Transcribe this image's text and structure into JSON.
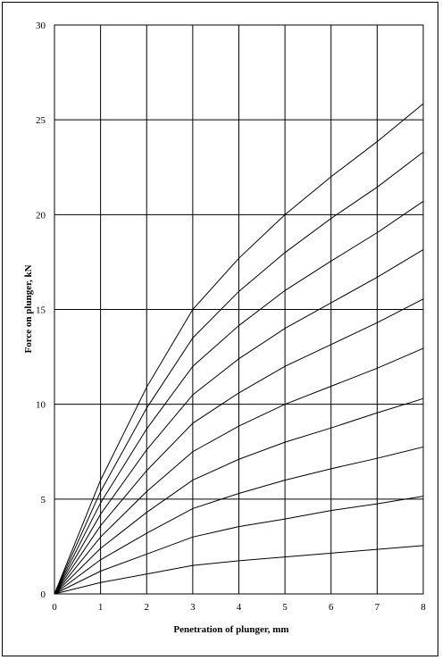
{
  "chart_data": {
    "type": "line",
    "xlabel": "Penetration of plunger, mm",
    "ylabel": "Force on plunger, kN",
    "xlim": [
      0,
      8
    ],
    "ylim": [
      0,
      30
    ],
    "xticks": [
      0,
      1,
      2,
      3,
      4,
      5,
      6,
      7,
      8
    ],
    "yticks": [
      0,
      5,
      10,
      15,
      20,
      25,
      30
    ],
    "grid": true,
    "x": [
      0,
      1,
      2,
      3,
      4,
      5,
      6,
      7,
      8
    ],
    "series": [
      {
        "values": [
          0,
          0.6,
          1.05,
          1.5,
          1.75,
          1.95,
          2.15,
          2.35,
          2.55
        ]
      },
      {
        "values": [
          0,
          1.2,
          2.1,
          3.0,
          3.55,
          3.95,
          4.4,
          4.75,
          5.15
        ]
      },
      {
        "values": [
          0,
          1.8,
          3.2,
          4.5,
          5.3,
          6.0,
          6.6,
          7.15,
          7.75
        ]
      },
      {
        "values": [
          0,
          2.4,
          4.3,
          6.0,
          7.1,
          8.0,
          8.75,
          9.55,
          10.3
        ]
      },
      {
        "values": [
          0,
          3.0,
          5.4,
          7.5,
          8.85,
          10.0,
          10.95,
          11.9,
          12.95
        ]
      },
      {
        "values": [
          0,
          3.6,
          6.5,
          9.0,
          10.6,
          12.0,
          13.15,
          14.3,
          15.55
        ]
      },
      {
        "values": [
          0,
          4.2,
          7.6,
          10.5,
          12.4,
          14.0,
          15.35,
          16.7,
          18.15
        ]
      },
      {
        "values": [
          0,
          4.8,
          8.7,
          12.0,
          14.15,
          16.0,
          17.55,
          19.05,
          20.7
        ]
      },
      {
        "values": [
          0,
          5.4,
          9.8,
          13.5,
          15.95,
          18.0,
          19.8,
          21.45,
          23.3
        ]
      },
      {
        "values": [
          0,
          6.0,
          10.9,
          15.0,
          17.7,
          20.0,
          22.0,
          23.85,
          25.85
        ]
      }
    ]
  }
}
